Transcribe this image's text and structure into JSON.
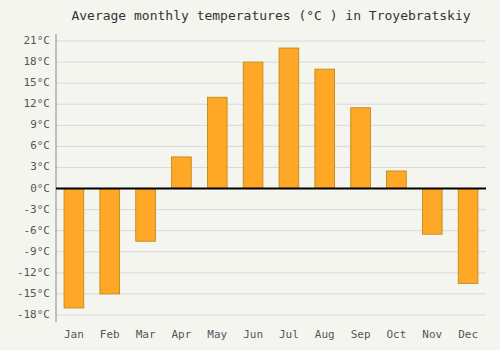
{
  "chart_data": {
    "type": "bar",
    "title": "Average monthly temperatures (°C ) in Troyebratskiy",
    "categories": [
      "Jan",
      "Feb",
      "Mar",
      "Apr",
      "May",
      "Jun",
      "Jul",
      "Aug",
      "Sep",
      "Oct",
      "Nov",
      "Dec"
    ],
    "values": [
      -17,
      -15,
      -7.5,
      4.5,
      13,
      18,
      20,
      17,
      11.5,
      2.5,
      -6.5,
      -13.5
    ],
    "color": "#FFA726",
    "ylim": [
      -19,
      22
    ],
    "yticks": [
      {
        "value": -18,
        "label": "-18°C"
      },
      {
        "value": -15,
        "label": "-15°C"
      },
      {
        "value": -12,
        "label": "-12°C"
      },
      {
        "value": -9,
        "label": "-9°C"
      },
      {
        "value": -6,
        "label": "-6°C"
      },
      {
        "value": -3,
        "label": "-3°C"
      },
      {
        "value": 0,
        "label": "0°C"
      },
      {
        "value": 3,
        "label": "3°C"
      },
      {
        "value": 6,
        "label": "6°C"
      },
      {
        "value": 9,
        "label": "9°C"
      },
      {
        "value": 12,
        "label": "12°C"
      },
      {
        "value": 15,
        "label": "15°C"
      },
      {
        "value": 18,
        "label": "18°C"
      },
      {
        "value": 21,
        "label": "21°C"
      }
    ],
    "grid": true
  }
}
